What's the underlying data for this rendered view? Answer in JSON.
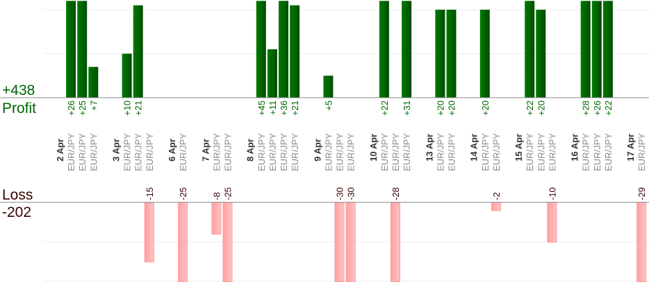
{
  "chart_data": {
    "type": "bar",
    "profit": {
      "label": "Profit",
      "total": "+438",
      "color": "#006400",
      "ylim": [
        0,
        22
      ]
    },
    "loss": {
      "label": "Loss",
      "total": "-202",
      "color": "#ffb0b0",
      "text_color": "#3a0000",
      "ylim": [
        0,
        20
      ]
    },
    "grid": true,
    "groups": [
      {
        "date": "2 Apr",
        "trades": [
          {
            "pair": "EUR/JPY",
            "value": 26
          },
          {
            "pair": "EUR/JPY",
            "value": 25
          },
          {
            "pair": "EUR/JPY",
            "value": 7
          }
        ]
      },
      {
        "date": "3 Apr",
        "trades": [
          {
            "pair": "EUR/JPY",
            "value": 10
          },
          {
            "pair": "EUR/JPY",
            "value": 21
          },
          {
            "pair": "EUR/JPY",
            "value": -15
          }
        ]
      },
      {
        "date": "6 Apr",
        "trades": [
          {
            "pair": "EUR/JPY",
            "value": -25
          }
        ]
      },
      {
        "date": "7 Apr",
        "trades": [
          {
            "pair": "EUR/JPY",
            "value": -8
          },
          {
            "pair": "EUR/JPY",
            "value": -25
          }
        ]
      },
      {
        "date": "8 Apr",
        "trades": [
          {
            "pair": "EUR/JPY",
            "value": 45
          },
          {
            "pair": "EUR/JPY",
            "value": 11
          },
          {
            "pair": "EUR/JPY",
            "value": 36
          },
          {
            "pair": "EUR/JPY",
            "value": 21
          }
        ]
      },
      {
        "date": "9 Apr",
        "trades": [
          {
            "pair": "EUR/JPY",
            "value": 5
          },
          {
            "pair": "EUR/JPY",
            "value": -30
          },
          {
            "pair": "EUR/JPY",
            "value": -30
          }
        ]
      },
      {
        "date": "10 Apr",
        "trades": [
          {
            "pair": "EUR/JPY",
            "value": 22
          },
          {
            "pair": "EUR/JPY",
            "value": -28
          },
          {
            "pair": "EUR/JPY",
            "value": 31
          }
        ]
      },
      {
        "date": "13 Apr",
        "trades": [
          {
            "pair": "EUR/JPY",
            "value": 20
          },
          {
            "pair": "EUR/JPY",
            "value": 20
          }
        ]
      },
      {
        "date": "14 Apr",
        "trades": [
          {
            "pair": "EUR/JPY",
            "value": 20
          },
          {
            "pair": "EUR/JPY",
            "value": -2
          }
        ]
      },
      {
        "date": "15 Apr",
        "trades": [
          {
            "pair": "EUR/JPY",
            "value": 22
          },
          {
            "pair": "EUR/JPY",
            "value": 20
          },
          {
            "pair": "EUR/JPY",
            "value": -10
          }
        ]
      },
      {
        "date": "16 Apr",
        "trades": [
          {
            "pair": "EUR/JPY",
            "value": 28
          },
          {
            "pair": "EUR/JPY",
            "value": 26
          },
          {
            "pair": "EUR/JPY",
            "value": 22
          }
        ]
      },
      {
        "date": "17 Apr",
        "trades": [
          {
            "pair": "EUR/JPY",
            "value": -29
          }
        ]
      }
    ]
  }
}
